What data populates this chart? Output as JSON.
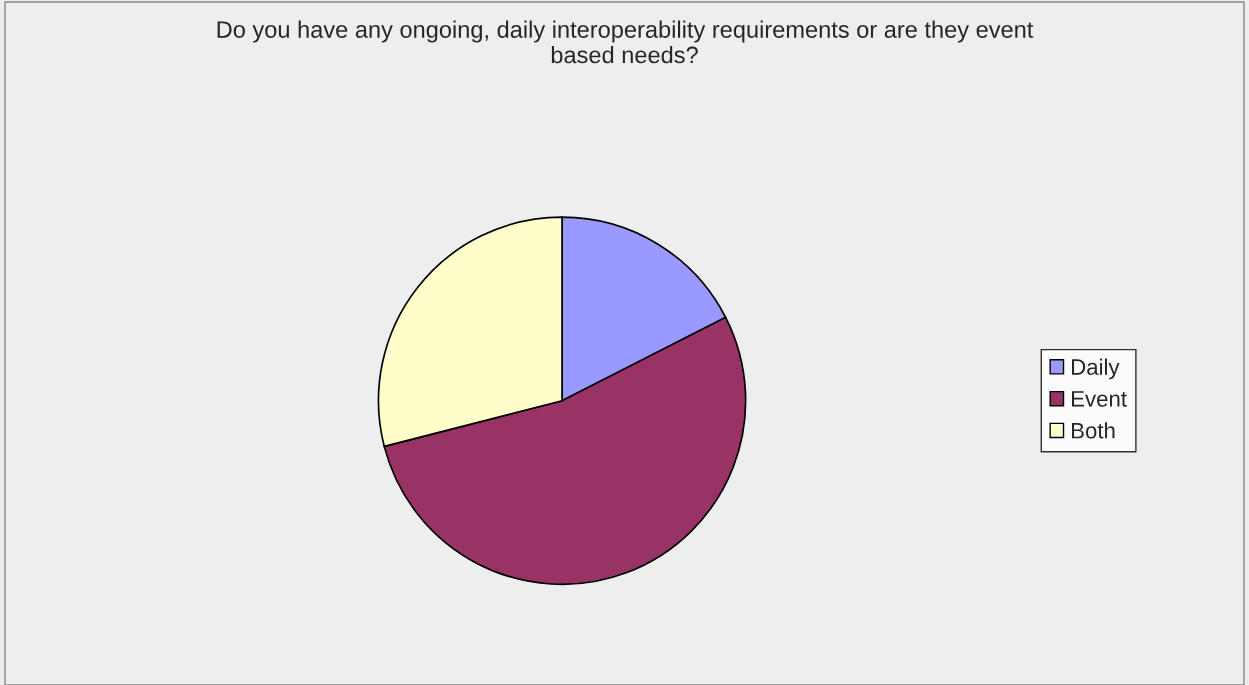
{
  "chart_data": {
    "type": "pie",
    "title": "Do you have any ongoing, daily interoperability requirements or are they event\nbased needs?",
    "categories": [
      "Daily",
      "Event",
      "Both"
    ],
    "values": [
      17.5,
      53.5,
      29
    ],
    "colors": [
      "#9999ff",
      "#993366",
      "#ffffcc"
    ],
    "legend": "right"
  }
}
